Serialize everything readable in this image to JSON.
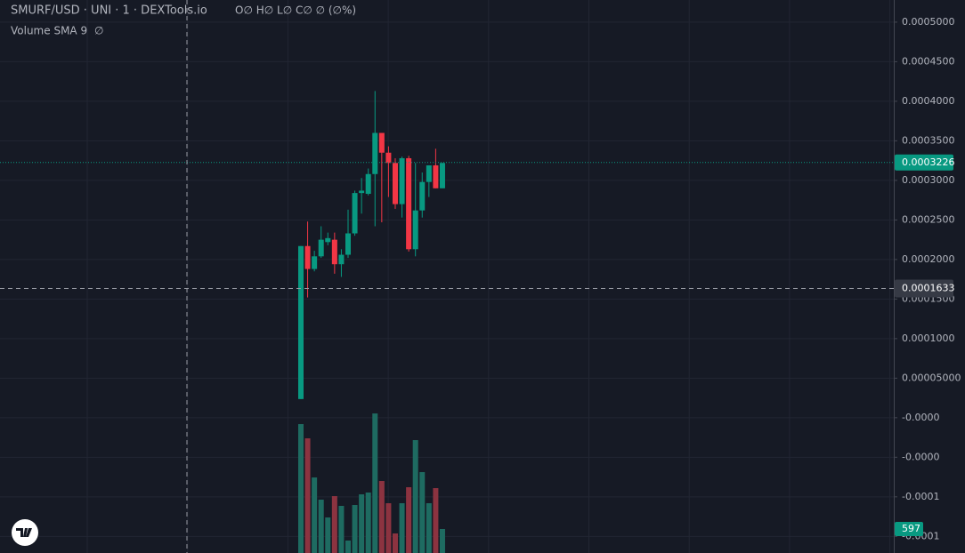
{
  "chart_data": {
    "type": "candlestick",
    "title": "SMURF/USD · UNI · 1 · DEXTools.io",
    "ohlc_legend": "O∅ H∅ L∅ C∅ ∅ (∅%)",
    "indicator": "Volume SMA 9",
    "indicator_value": "∅",
    "open": [
      2.36e-05,
      0.000217,
      0.000188,
      0.000204,
      0.000222,
      0.000225,
      0.000194,
      0.000206,
      0.000233,
      0.000284,
      0.000283,
      0.000308,
      0.00036,
      0.000335,
      0.000322,
      0.00027,
      0.000328,
      0.000213,
      0.000262,
      0.000298,
      0.000319,
      0.00029
    ],
    "high": [
      0.000217,
      0.000248,
      0.000211,
      0.000242,
      0.000234,
      0.000234,
      0.000213,
      0.000263,
      0.000287,
      0.000303,
      0.000315,
      0.000413,
      0.00036,
      0.000343,
      0.000328,
      0.00033,
      0.000331,
      0.000322,
      0.00031,
      0.000319,
      0.00034,
      0.000322
    ],
    "low": [
      2.36e-05,
      0.000152,
      0.000185,
      0.000202,
      0.000218,
      0.000182,
      0.000178,
      0.000202,
      0.00023,
      0.000258,
      0.000281,
      0.000242,
      0.000247,
      0.000279,
      0.000264,
      0.000253,
      0.00021,
      0.000204,
      0.000253,
      0.000279,
      0.00029,
      0.00029
    ],
    "close": [
      0.000217,
      0.000188,
      0.000204,
      0.000225,
      0.000227,
      0.000194,
      0.000206,
      0.000233,
      0.000284,
      0.000287,
      0.000308,
      0.00036,
      0.000335,
      0.000322,
      0.00027,
      0.000328,
      0.000213,
      0.000262,
      0.000298,
      0.000319,
      0.00029,
      0.000322
    ],
    "volume": [
      3206,
      2852,
      1879,
      1327,
      884,
      1415,
      1172,
      310,
      1194,
      1459,
      1504,
      3471,
      1791,
      1238,
      486,
      1238,
      1636,
      2808,
      2012,
      1238,
      1614,
      597
    ],
    "up_color": "#089981",
    "down_color": "#f23645",
    "volume_up_color": "#1e6b61",
    "volume_down_color": "#8c3340",
    "ylim": [
      -0.000171,
      0.000528
    ],
    "volume_ylim": [
      0,
      3538
    ],
    "yticks": [
      {
        "value": 0.0005,
        "label": "0.0005000"
      },
      {
        "value": 0.00045,
        "label": "0.0004500"
      },
      {
        "value": 0.0004,
        "label": "0.0004000"
      },
      {
        "value": 0.00035,
        "label": "0.0003500"
      },
      {
        "value": 0.0003,
        "label": "0.0003000"
      },
      {
        "value": 0.00025,
        "label": "0.0002500"
      },
      {
        "value": 0.0002,
        "label": "0.0002000"
      },
      {
        "value": 0.00015,
        "label": "0.0001500"
      },
      {
        "value": 0.0001,
        "label": "0.0001000"
      },
      {
        "value": 5e-05,
        "label": "0.00005000"
      },
      {
        "value": 0,
        "label": "-0.0000"
      },
      {
        "value": -5e-05,
        "label": "-0.0000"
      },
      {
        "value": -0.0001,
        "label": "-0.0001"
      },
      {
        "value": -0.00015,
        "label": "-0.0001"
      }
    ],
    "grid": true,
    "last_price": 0.0003226,
    "crosshair_price": 0.0001633,
    "last_volume": 597
  }
}
